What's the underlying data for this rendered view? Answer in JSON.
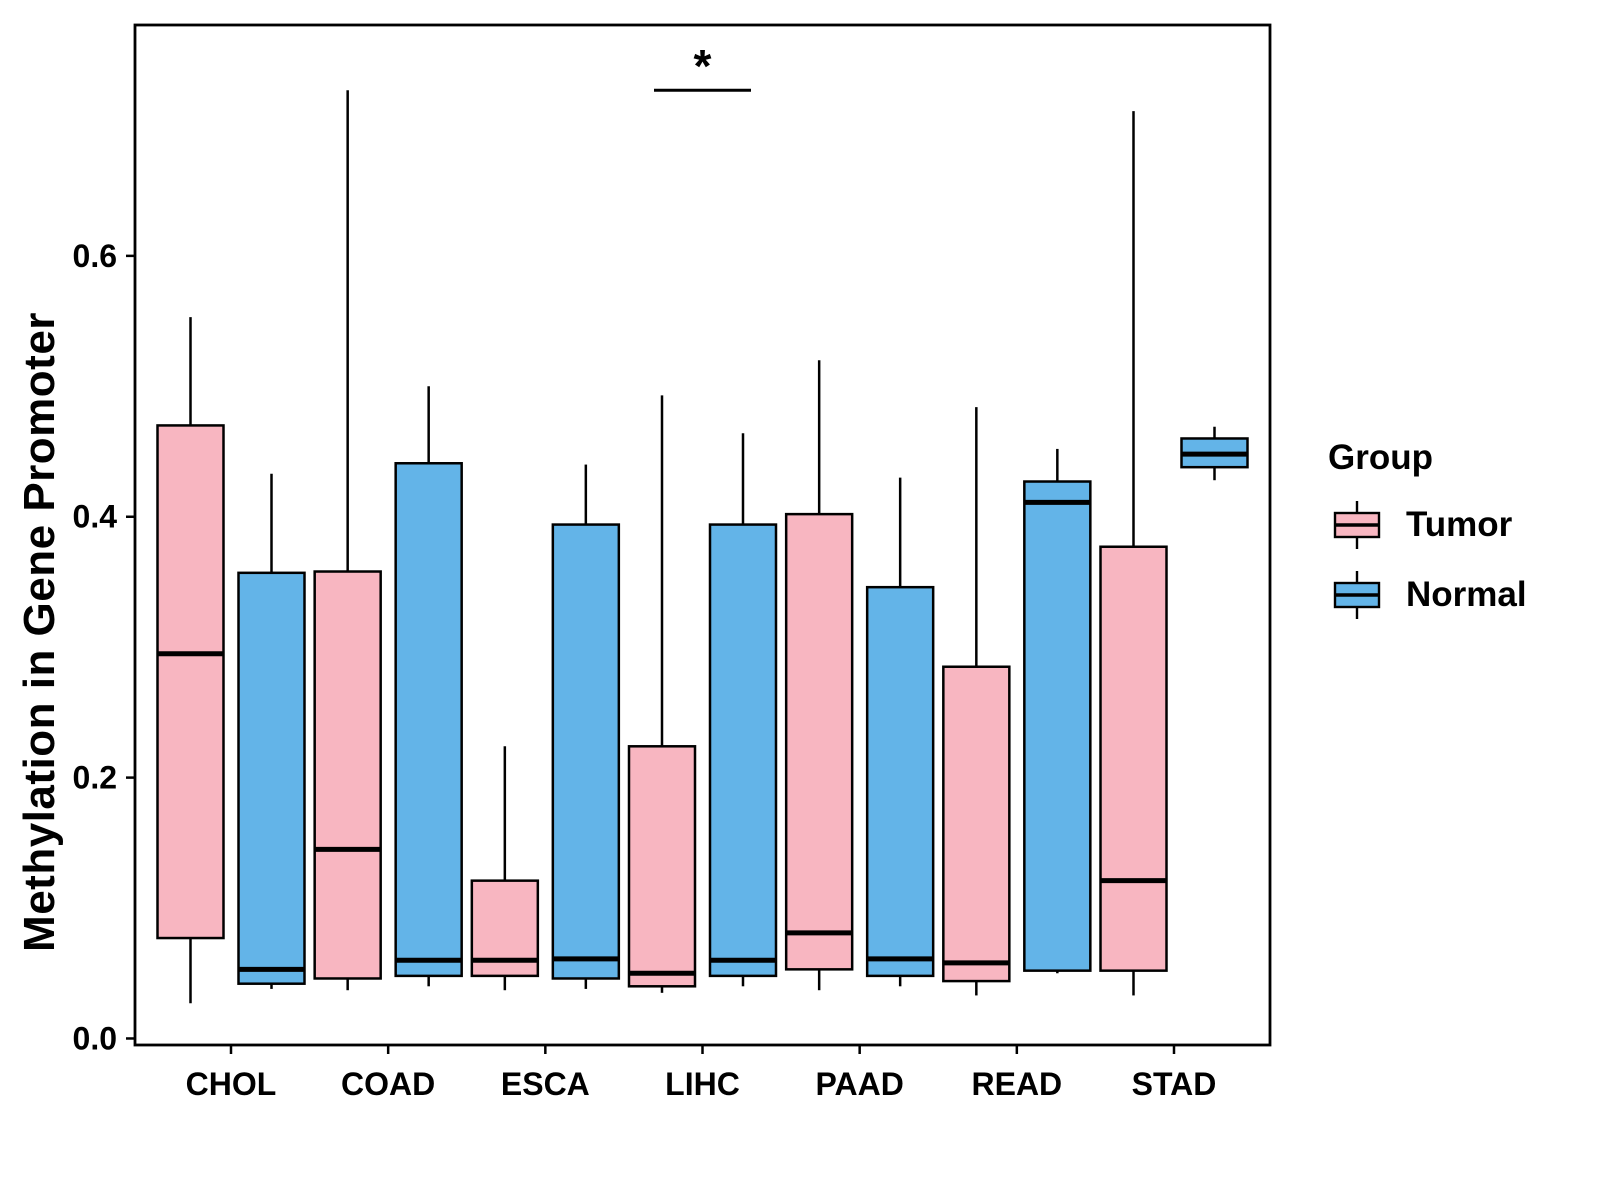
{
  "chart_data": {
    "type": "boxplot",
    "title": "",
    "ylabel": "Methylation in Gene Promoter",
    "xlabel": "",
    "categories": [
      "CHOL",
      "COAD",
      "ESCA",
      "LIHC",
      "PAAD",
      "READ",
      "STAD"
    ],
    "groups": [
      {
        "name": "Tumor",
        "color": "#F8B6C1"
      },
      {
        "name": "Normal",
        "color": "#63B4E8"
      }
    ],
    "legend": {
      "title": "Group",
      "position": "right"
    },
    "axis": {
      "ylim": [
        -0.005,
        0.777
      ],
      "yticks": [
        0.0,
        0.2,
        0.4,
        0.6
      ],
      "ytick_labels": [
        "0.0",
        "0.2",
        "0.4",
        "0.6"
      ],
      "grid": "off"
    },
    "series": [
      {
        "name": "Tumor",
        "boxes": [
          {
            "category": "CHOL",
            "low": 0.027,
            "q1": 0.077,
            "median": 0.295,
            "q3": 0.47,
            "high": 0.553
          },
          {
            "category": "COAD",
            "low": 0.037,
            "q1": 0.046,
            "median": 0.145,
            "q3": 0.358,
            "high": 0.727
          },
          {
            "category": "ESCA",
            "low": 0.037,
            "q1": 0.048,
            "median": 0.06,
            "q3": 0.121,
            "high": 0.224
          },
          {
            "category": "LIHC",
            "low": 0.035,
            "q1": 0.04,
            "median": 0.05,
            "q3": 0.224,
            "high": 0.493
          },
          {
            "category": "PAAD",
            "low": 0.037,
            "q1": 0.053,
            "median": 0.081,
            "q3": 0.402,
            "high": 0.52
          },
          {
            "category": "READ",
            "low": 0.033,
            "q1": 0.044,
            "median": 0.058,
            "q3": 0.285,
            "high": 0.484
          },
          {
            "category": "STAD",
            "low": 0.033,
            "q1": 0.052,
            "median": 0.121,
            "q3": 0.377,
            "high": 0.711
          }
        ]
      },
      {
        "name": "Normal",
        "boxes": [
          {
            "category": "CHOL",
            "low": 0.038,
            "q1": 0.042,
            "median": 0.053,
            "q3": 0.357,
            "high": 0.433
          },
          {
            "category": "COAD",
            "low": 0.04,
            "q1": 0.048,
            "median": 0.06,
            "q3": 0.441,
            "high": 0.5
          },
          {
            "category": "ESCA",
            "low": 0.038,
            "q1": 0.046,
            "median": 0.061,
            "q3": 0.394,
            "high": 0.44
          },
          {
            "category": "LIHC",
            "low": 0.04,
            "q1": 0.048,
            "median": 0.06,
            "q3": 0.394,
            "high": 0.464
          },
          {
            "category": "PAAD",
            "low": 0.04,
            "q1": 0.048,
            "median": 0.061,
            "q3": 0.346,
            "high": 0.43
          },
          {
            "category": "READ",
            "low": 0.05,
            "q1": 0.052,
            "median": 0.411,
            "q3": 0.427,
            "high": 0.452
          },
          {
            "category": "STAD",
            "low": 0.428,
            "q1": 0.438,
            "median": 0.448,
            "q3": 0.46,
            "high": 0.469
          }
        ]
      }
    ],
    "annotations": [
      {
        "label": "*",
        "category": "LIHC",
        "y": 0.727,
        "type": "significance-bracket"
      }
    ]
  }
}
